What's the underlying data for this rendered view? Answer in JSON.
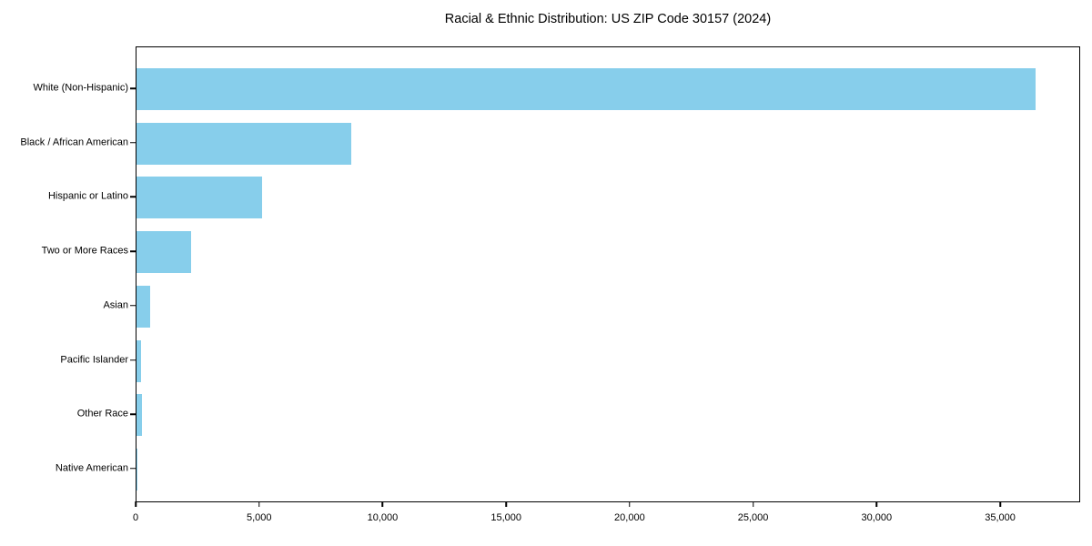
{
  "title": "Racial & Ethnic Distribution: US ZIP Code 30157 (2024)",
  "chart_data": {
    "type": "bar",
    "orientation": "horizontal",
    "title": "Racial & Ethnic Distribution: US ZIP Code 30157 (2024)",
    "categories": [
      "White (Non-Hispanic)",
      "Black / African American",
      "Hispanic or Latino",
      "Two or More Races",
      "Asian",
      "Pacific Islander",
      "Other Race",
      "Native American"
    ],
    "values": [
      36400,
      8700,
      5100,
      2200,
      570,
      200,
      230,
      30
    ],
    "xlabel": "",
    "ylabel": "",
    "xlim": [
      0,
      38240
    ],
    "xticks": [
      0,
      5000,
      10000,
      15000,
      20000,
      25000,
      30000,
      35000
    ],
    "xtick_labels": [
      "0",
      "5,000",
      "10,000",
      "15,000",
      "20,000",
      "25,000",
      "30,000",
      "35,000"
    ],
    "grid": false,
    "legend": "none",
    "bar_color": "#87CEEB",
    "background_color": "#FFFFFF",
    "axis_color": "#000000"
  }
}
